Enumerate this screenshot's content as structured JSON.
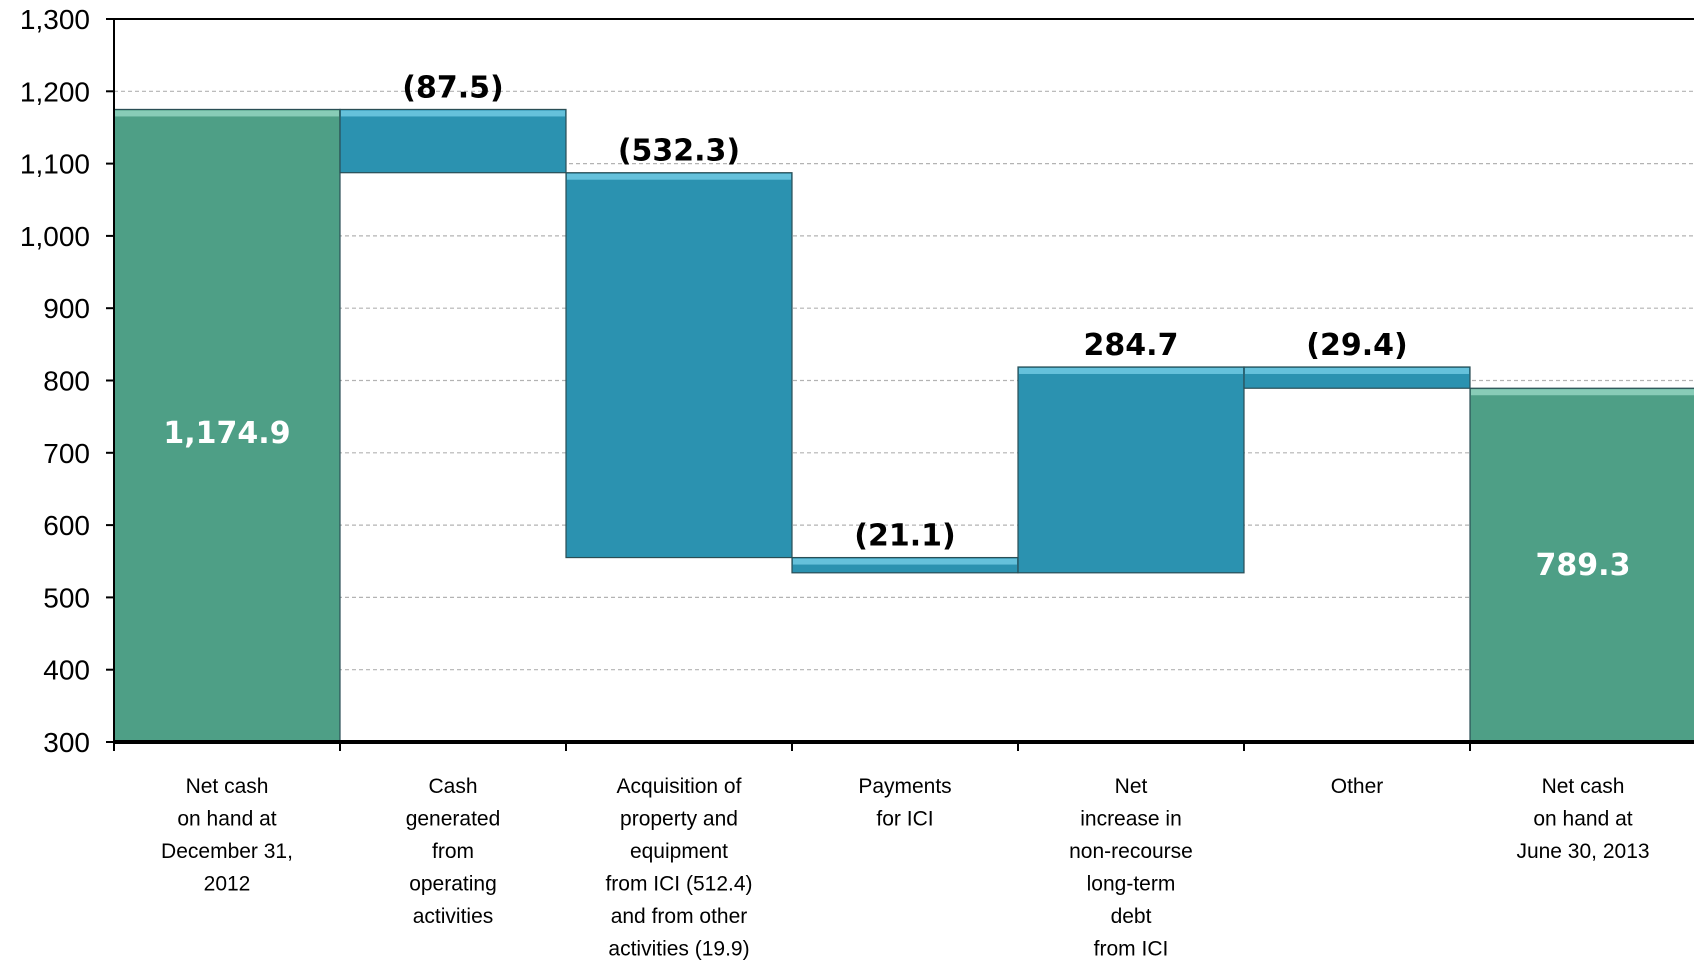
{
  "chart_data": {
    "type": "bar",
    "subtype": "waterfall",
    "ylim": [
      300,
      1300
    ],
    "ytick_step": 100,
    "grid": true,
    "y_ticks": [
      "300",
      "400",
      "500",
      "600",
      "700",
      "800",
      "900",
      "1,000",
      "1,100",
      "1,200",
      "1,300"
    ],
    "categories": [
      [
        "Net cash",
        "on hand at",
        "December 31,",
        "2012"
      ],
      [
        "Cash",
        "generated",
        "from",
        "operating",
        "activities"
      ],
      [
        "Acquisition of",
        "property and",
        "equipment",
        "from ICI (512.4)",
        "and from other",
        "activities (19.9)"
      ],
      [
        "Payments",
        "for ICI"
      ],
      [
        "Net",
        "increase in",
        "non-recourse",
        "long-term",
        "debt",
        "from ICI"
      ],
      [
        "Other"
      ],
      [
        "Net cash",
        "on hand at",
        "June 30, 2013"
      ]
    ],
    "steps": [
      {
        "kind": "total",
        "value": 1174.9,
        "label": "1,174.9"
      },
      {
        "kind": "delta",
        "value": -87.5,
        "label": "(87.5)"
      },
      {
        "kind": "delta",
        "value": -532.3,
        "label": "(532.3)"
      },
      {
        "kind": "delta",
        "value": -21.1,
        "label": "(21.1)"
      },
      {
        "kind": "delta",
        "value": 284.7,
        "label": "284.7"
      },
      {
        "kind": "delta",
        "value": -29.4,
        "label": "(29.4)"
      },
      {
        "kind": "total",
        "value": 789.3,
        "label": "789.3"
      }
    ],
    "colors": {
      "total": "#4e9f86",
      "total_top": "#8fd0bd",
      "delta": "#2b92b0",
      "delta_top": "#6cc6e0",
      "grid": "#b3b3b3"
    }
  }
}
